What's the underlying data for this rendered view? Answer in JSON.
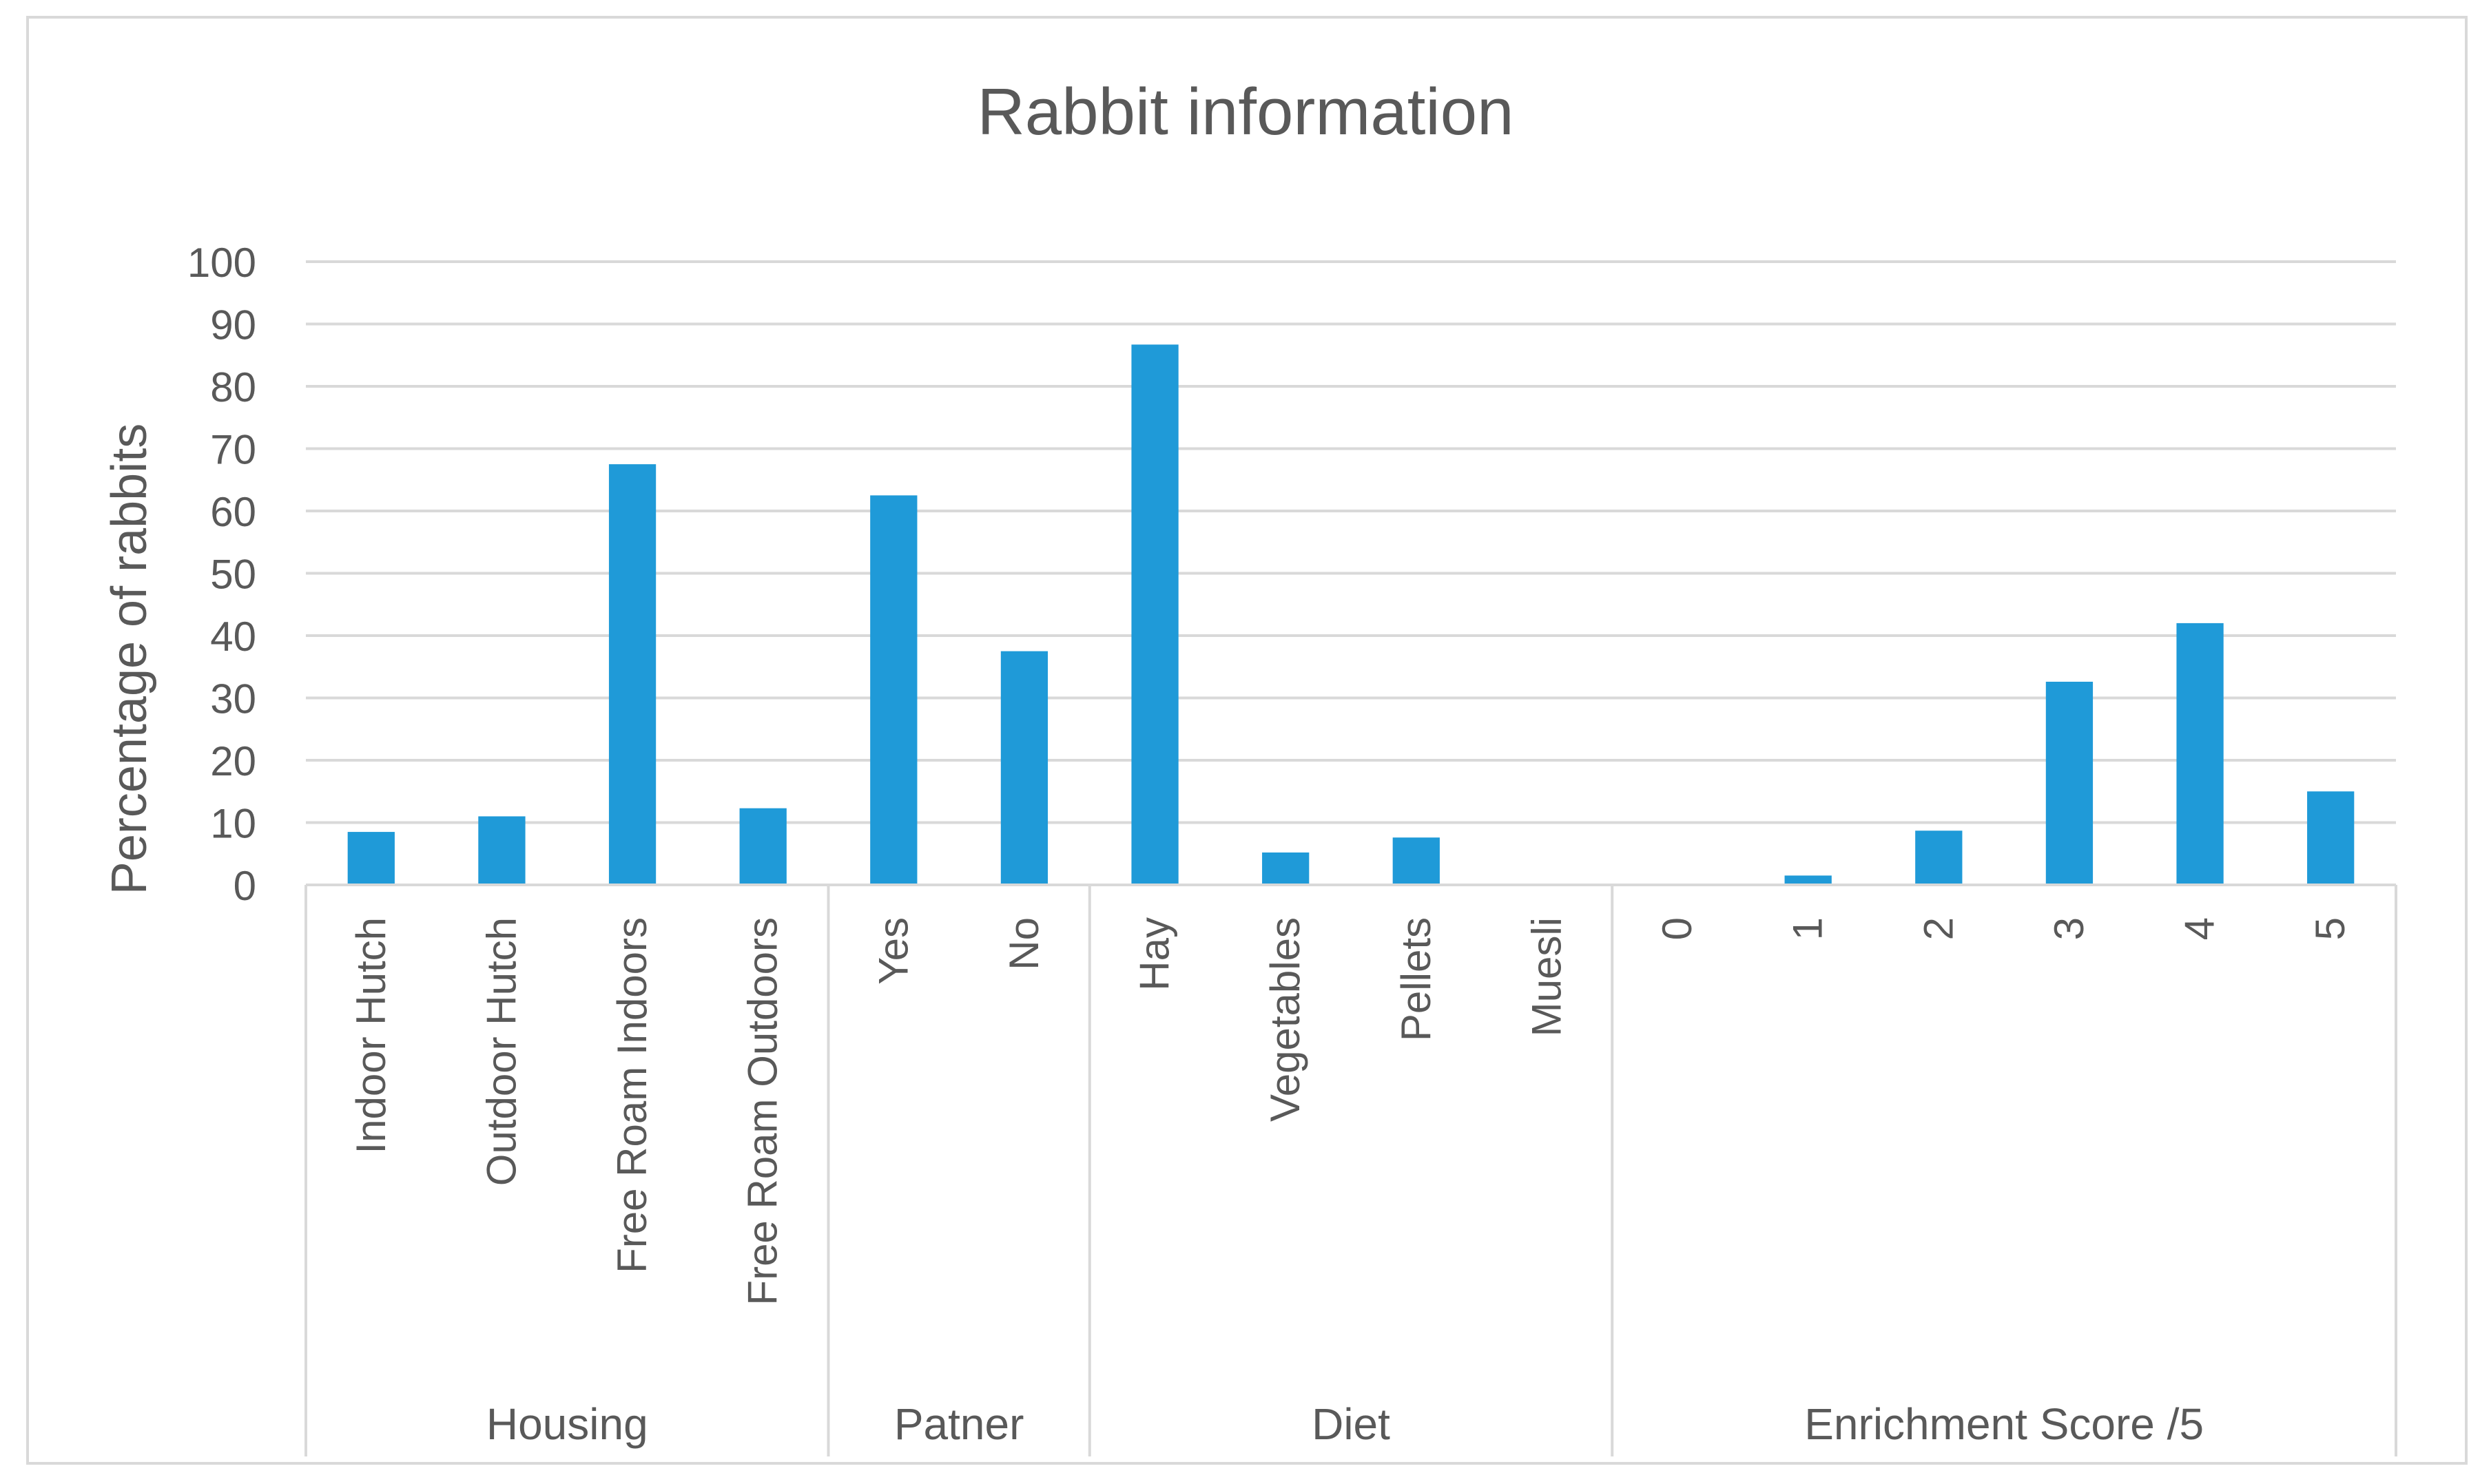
{
  "chart_data": {
    "type": "bar",
    "title": "Rabbit information",
    "xlabel": "",
    "ylabel": "Percentage of rabbits",
    "ylim": [
      0,
      100
    ],
    "yticks": [
      0,
      10,
      20,
      30,
      40,
      50,
      60,
      70,
      80,
      90,
      100
    ],
    "grid": true,
    "legend": "none",
    "bar_color": "#1f9ad8",
    "groups": [
      {
        "name": "Housing",
        "categories": [
          "Indoor Hutch",
          "Outdoor Hutch",
          "Free Roam Indoors",
          "Free Roam Outdoors"
        ],
        "values": [
          8.5,
          11,
          67.5,
          12.3
        ]
      },
      {
        "name": "Patner",
        "categories": [
          "Yes",
          "No"
        ],
        "values": [
          62.5,
          37.5
        ]
      },
      {
        "name": "Diet",
        "categories": [
          "Hay",
          "Vegetables",
          "Pellets",
          "Muesli"
        ],
        "values": [
          86.7,
          5.2,
          7.6,
          0
        ]
      },
      {
        "name": "Enrichment Score /5",
        "categories": [
          "0",
          "1",
          "2",
          "3",
          "4",
          "5"
        ],
        "values": [
          0,
          1.5,
          8.7,
          32.6,
          42,
          15
        ]
      }
    ]
  }
}
